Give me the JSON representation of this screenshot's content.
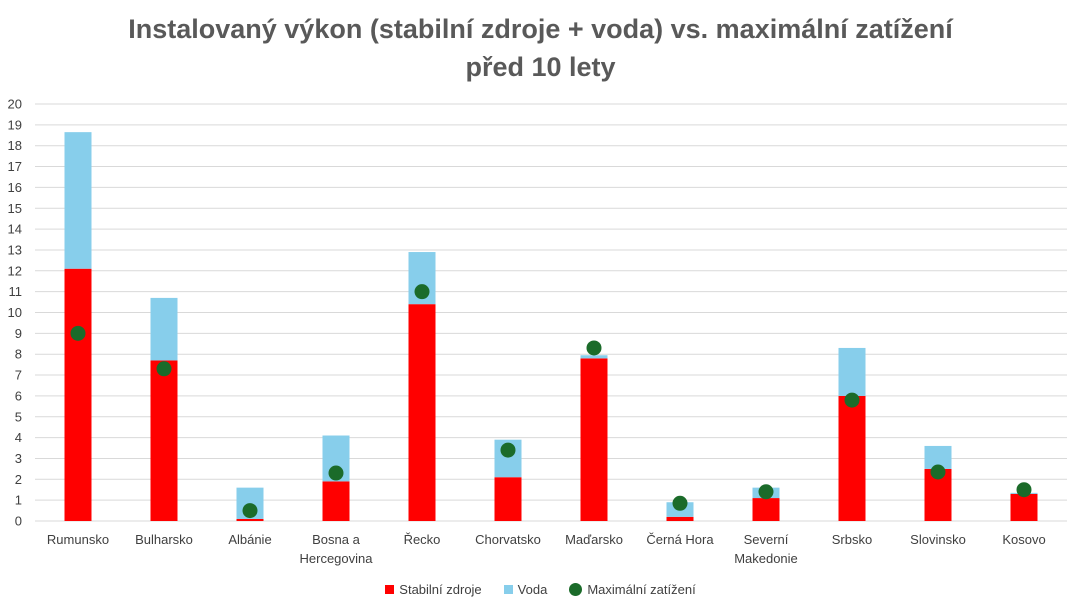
{
  "chart_data": {
    "type": "bar",
    "stacked": true,
    "title_lines": [
      "Instalovaný výkon (stabilní zdroje + voda) vs. maximální zatížení",
      "před 10 lety"
    ],
    "categories": [
      [
        "Rumunsko"
      ],
      [
        "Bulharsko"
      ],
      [
        "Albánie"
      ],
      [
        "Bosna a",
        "Hercegovina"
      ],
      [
        "Řecko"
      ],
      [
        "Chorvatsko"
      ],
      [
        "Maďarsko"
      ],
      [
        "Černá Hora"
      ],
      [
        "Severní",
        "Makedonie"
      ],
      [
        "Srbsko"
      ],
      [
        "Slovinsko"
      ],
      [
        "Kosovo"
      ]
    ],
    "series": [
      {
        "name": "Stabilní zdroje",
        "kind": "bar",
        "color": "#ff0000",
        "values": [
          12.1,
          7.7,
          0.1,
          1.9,
          10.4,
          2.1,
          7.8,
          0.2,
          1.1,
          6.0,
          2.5,
          1.3
        ]
      },
      {
        "name": "Voda",
        "kind": "bar",
        "color": "#87ceeb",
        "values": [
          6.55,
          3.0,
          1.5,
          2.2,
          2.5,
          1.8,
          0.15,
          0.7,
          0.5,
          2.3,
          1.1,
          0.05
        ]
      },
      {
        "name": "Maximální zatížení",
        "kind": "marker",
        "color": "#1b6b2a",
        "values": [
          9.0,
          7.3,
          0.5,
          2.3,
          11.0,
          3.4,
          8.3,
          0.85,
          1.4,
          5.8,
          2.35,
          1.5
        ]
      }
    ],
    "ylim": [
      0,
      20
    ],
    "yticks": [
      0,
      1,
      2,
      3,
      4,
      5,
      6,
      7,
      8,
      9,
      10,
      11,
      12,
      13,
      14,
      15,
      16,
      17,
      18,
      19,
      20
    ],
    "grid": true,
    "legend_position": "bottom"
  }
}
